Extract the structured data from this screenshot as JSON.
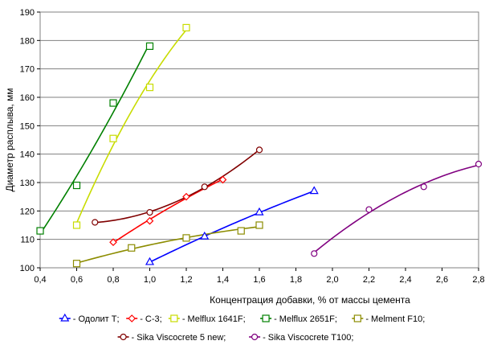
{
  "chart_data": {
    "type": "scatter",
    "title": "",
    "xlabel": "Концентрация добавки, % от массы цемента",
    "ylabel": "Диаметр расплыва, мм",
    "xlim": [
      0.4,
      2.8
    ],
    "ylim": [
      100,
      190
    ],
    "x_ticks": [
      "0,4",
      "0,6",
      "0,8",
      "1,0",
      "1,2",
      "1,4",
      "1,6",
      "1,8",
      "2,0",
      "2,2",
      "2,4",
      "2,6",
      "2,8"
    ],
    "y_ticks": [
      "100",
      "110",
      "120",
      "130",
      "140",
      "150",
      "160",
      "170",
      "180",
      "190"
    ],
    "grid": "horizontal",
    "legend_position": "bottom",
    "series": [
      {
        "name": "Одолит Т;",
        "marker": "triangle",
        "color": "#0000ff",
        "x": [
          1.0,
          1.3,
          1.6,
          1.9
        ],
        "y": [
          102,
          111,
          119.5,
          127
        ]
      },
      {
        "name": "С-3;",
        "marker": "diamond",
        "color": "#ff0000",
        "x": [
          0.8,
          1.0,
          1.2,
          1.4
        ],
        "y": [
          109,
          116.5,
          125,
          131
        ]
      },
      {
        "name": "Melflux 1641F;",
        "marker": "square",
        "color": "#c8dc00",
        "x": [
          0.6,
          0.8,
          1.0,
          1.2
        ],
        "y": [
          115,
          145.5,
          163.5,
          184.5
        ]
      },
      {
        "name": "Melflux 2651F;",
        "marker": "square",
        "color": "#008000",
        "x": [
          0.4,
          0.6,
          0.8,
          1.0
        ],
        "y": [
          113,
          129,
          158,
          178
        ]
      },
      {
        "name": "Melment F10;",
        "marker": "square",
        "color": "#8c8c00",
        "x": [
          0.6,
          0.9,
          1.2,
          1.5,
          1.6
        ],
        "y": [
          101.5,
          107,
          110.5,
          113,
          115
        ]
      },
      {
        "name": "Sika Viscocrete 5 new;",
        "marker": "circle",
        "color": "#800000",
        "x": [
          0.7,
          1.0,
          1.3,
          1.6
        ],
        "y": [
          116,
          119.5,
          128.5,
          141.5
        ]
      },
      {
        "name": "Sika Viscocrete T100;",
        "marker": "circle",
        "color": "#800080",
        "x": [
          1.9,
          2.2,
          2.5,
          2.8
        ],
        "y": [
          105,
          120.5,
          128.5,
          136.5
        ]
      }
    ]
  }
}
